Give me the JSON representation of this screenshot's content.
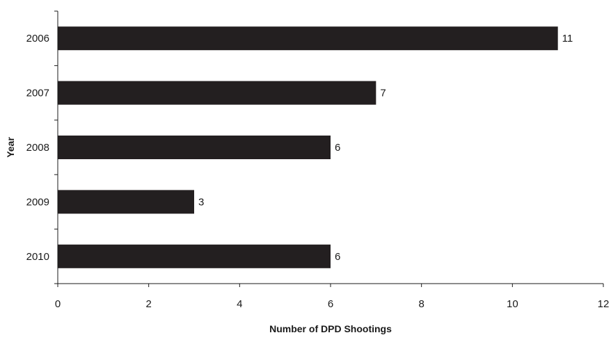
{
  "chart_data": {
    "type": "bar",
    "orientation": "horizontal",
    "title": "",
    "xlabel": "Number of DPD Shootings",
    "ylabel": "Year",
    "categories": [
      "2006",
      "2007",
      "2008",
      "2009",
      "2010"
    ],
    "values": [
      11,
      7,
      6,
      3,
      6
    ],
    "data_labels": [
      "11",
      "7",
      "6",
      "3",
      "6"
    ],
    "xlim": [
      0,
      12
    ],
    "x_ticks": [
      0,
      2,
      4,
      6,
      8,
      10,
      12
    ],
    "x_tick_labels": [
      "0",
      "2",
      "4",
      "6",
      "8",
      "10",
      "12"
    ],
    "grid": false,
    "legend": "none",
    "bar_color": "#231f20"
  }
}
